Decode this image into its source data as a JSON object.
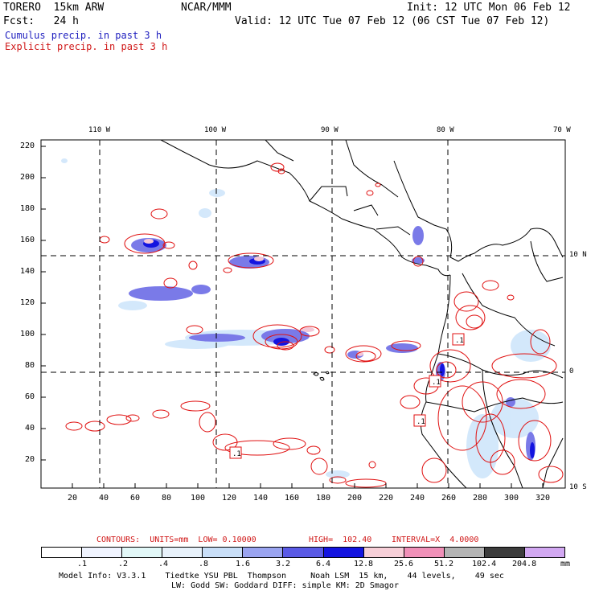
{
  "header": {
    "model": "TORERO  15km ARW",
    "org": "NCAR/MMM",
    "init": "Init: 12 UTC Mon 06 Feb 12",
    "fcst": "Fcst:   24 h",
    "valid": "Valid: 12 UTC Tue 07 Feb 12 (06 CST Tue 07 Feb 12)",
    "legend_cumulus": "Cumulus precip. in past 3 h",
    "legend_explicit": "Explicit precip. in past 3 h"
  },
  "map": {
    "lon_labels": [
      "110 W",
      "100 W",
      "90 W",
      "80 W",
      "70 W"
    ],
    "lat_labels": [
      "10 N",
      "0",
      "10 S"
    ],
    "y_ticks": [
      "220",
      "200",
      "180",
      "160",
      "140",
      "120",
      "100",
      "80",
      "60",
      "40",
      "20"
    ],
    "x_ticks": [
      "20",
      "40",
      "60",
      "80",
      "100",
      "120",
      "140",
      "160",
      "180",
      "200",
      "220",
      "240",
      "260",
      "280",
      "300",
      "320"
    ],
    "box_labels": [
      ".1",
      ".1",
      ".1",
      ".1"
    ]
  },
  "contours_caption": {
    "contours": "CONTOURS:  UNITS=mm  LOW= 0.10000",
    "high": "HIGH=  102.40",
    "interval": "INTERVAL=X  4.0000"
  },
  "colorbar": {
    "levels": [
      ".1",
      ".2",
      ".4",
      ".8",
      "1.6",
      "3.2",
      "6.4",
      "12.8",
      "25.6",
      "51.2",
      "102.4",
      "204.8"
    ],
    "unit": "mm",
    "colors": [
      "#ffffff",
      "#f0f4ff",
      "#e2f8f8",
      "#e8f2fb",
      "#c9dff8",
      "#9aa4f0",
      "#5a5ae6",
      "#1414e0",
      "#f7cfd8",
      "#f090b8",
      "#b4b4b4",
      "#3c3c3c",
      "#d2a8f2"
    ]
  },
  "footer": {
    "line1": "Model Info: V3.3.1    Tiedtke YSU PBL  Thompson     Noah LSM  15 km,    44 levels,    49 sec",
    "line2": "LW: Godd SW: Goddard DIFF: simple KM: 2D Smagor"
  }
}
